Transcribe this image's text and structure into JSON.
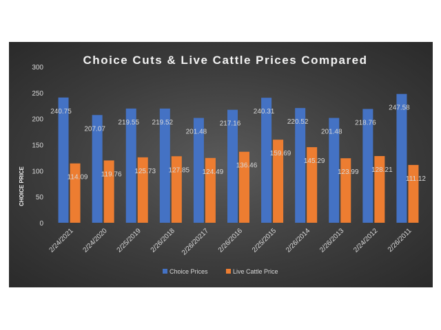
{
  "chart_data": {
    "type": "bar",
    "title": "Choice Cuts & Live Cattle Prices Compared",
    "ylabel": "CHOICE PRICE",
    "xlabel": "",
    "ylim": [
      0,
      300
    ],
    "yticks": [
      0,
      50,
      100,
      150,
      200,
      250,
      300
    ],
    "grid": false,
    "legend": "bottom",
    "categories": [
      "2/24/2021",
      "2/24/2020",
      "2/25/2019",
      "2/26/2018",
      "2/26/20217",
      "2/26/2016",
      "2/25/2015",
      "2/26/2014",
      "2/26/2013",
      "2/24/2012",
      "2/26/2011"
    ],
    "series": [
      {
        "name": "Choice Prices",
        "color": "#4472c4",
        "values": [
          240.75,
          207.07,
          219.55,
          219.52,
          201.48,
          217.16,
          240.31,
          220.52,
          201.48,
          218.76,
          247.58
        ],
        "labels": [
          "240.75",
          "207.07",
          "219.55",
          "219.52",
          "201.48",
          "217.16",
          "240.31",
          "220.52",
          "201.48",
          "218.76",
          "247.58"
        ]
      },
      {
        "name": "Live Cattle Price",
        "color": "#ed7d31",
        "values": [
          114.09,
          119.76,
          125.73,
          127.85,
          124.49,
          136.46,
          159.69,
          145.29,
          123.99,
          128.21,
          111.12
        ],
        "labels": [
          "114.09",
          "119.76",
          "125.73",
          "127.85",
          "124.49",
          "136.46",
          "159.69",
          "145.29",
          "123.99",
          "128.21",
          "111.12"
        ]
      }
    ]
  }
}
